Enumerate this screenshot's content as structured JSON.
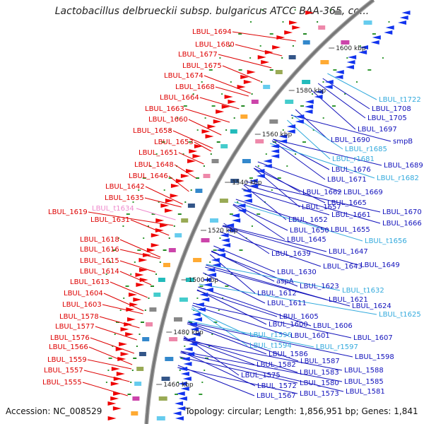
{
  "header": {
    "title": "Lactobacillus delbrueckii subsp. bulgaricus ATCC BAA-365, co..."
  },
  "footer": {
    "accession": "Accession: NC_008529",
    "stats": "Topology: circular; Length: 1,856,951 bp; Genes: 1,841"
  },
  "colors": {
    "left_labels": "#dd0000",
    "right_labels": "#1111bb",
    "rna_labels": "#33aadd",
    "trna_left": "#ee88cc",
    "backbone": "#777777",
    "arrow_forward": "#ee0000",
    "arrow_reverse": "#1133ee"
  },
  "scale": [
    "1600 kbp",
    "1580 kbp",
    "1560 kbp",
    "1540 kbp",
    "1520 kbp",
    "1500 kbp",
    "1480 kbp",
    "1460 kbp"
  ],
  "left_labels": [
    "LBUL_1694",
    "LBUL_1680",
    "LBUL_1677",
    "LBUL_1675",
    "LBUL_1674",
    "LBUL_1668",
    "LBUL_1664",
    "LBUL_1663",
    "LBUL_1660",
    "LBUL_1658",
    "LBUL_1653",
    "LBUL_1651",
    "LBUL_1648",
    "LBUL_1646",
    "LBUL_1642",
    "LBUL_1635",
    "LBUL_t1634",
    "LBUL_1619",
    "LBUL_1631",
    "LBUL_1618",
    "LBUL_1616",
    "LBUL_1615",
    "LBUL_1614",
    "LBUL_1613",
    "LBUL_1604",
    "LBUL_1603",
    "LBUL_1578",
    "LBUL_1577",
    "LBUL_1576",
    "LBUL_1566",
    "LBUL_1559",
    "LBUL_1557",
    "LBUL_1555"
  ],
  "right_labels": [
    "LBUL_t1722",
    "LBUL_1708",
    "LBUL_1705",
    "LBUL_1697",
    "smpB",
    "LBUL_1690",
    "LBUL_r1685",
    "LBUL_r1681",
    "LBUL_1689",
    "LBUL_1676",
    "LBUL_r1682",
    "LBUL_1671",
    "LBUL_1662",
    "LBUL_1669",
    "LBUL_1665",
    "LBUL_1657",
    "LBUL_1661",
    "LBUL_1670",
    "LBUL_1652",
    "LBUL_1666",
    "LBUL_1650",
    "LBUL_1655",
    "LBUL_1645",
    "LBUL_t1656",
    "LBUL_1647",
    "LBUL_1639",
    "LBUL_1643",
    "LBUL_1649",
    "LBUL_1630",
    "aspA",
    "LBUL_1623",
    "LBUL_1612",
    "LBUL_t1632",
    "LBUL_1611",
    "LBUL_1621",
    "LBUL_1624",
    "LBUL_1605",
    "LBUL_t1625",
    "LBUL_1600",
    "LBUL_1606",
    "LBUL_r1596",
    "LBUL_1601",
    "LBUL_1607",
    "LBUL_t1594",
    "LBUL_r1597",
    "LBUL_1586",
    "LBUL_1598",
    "LBUL_1587",
    "LBUL_1582",
    "LBUL_1588",
    "LBUL_1583",
    "LBUL_1575",
    "LBUL_1580",
    "LBUL_1585",
    "LBUL_1572",
    "LBUL_1581",
    "LBUL_1573",
    "LBUL_1567"
  ]
}
